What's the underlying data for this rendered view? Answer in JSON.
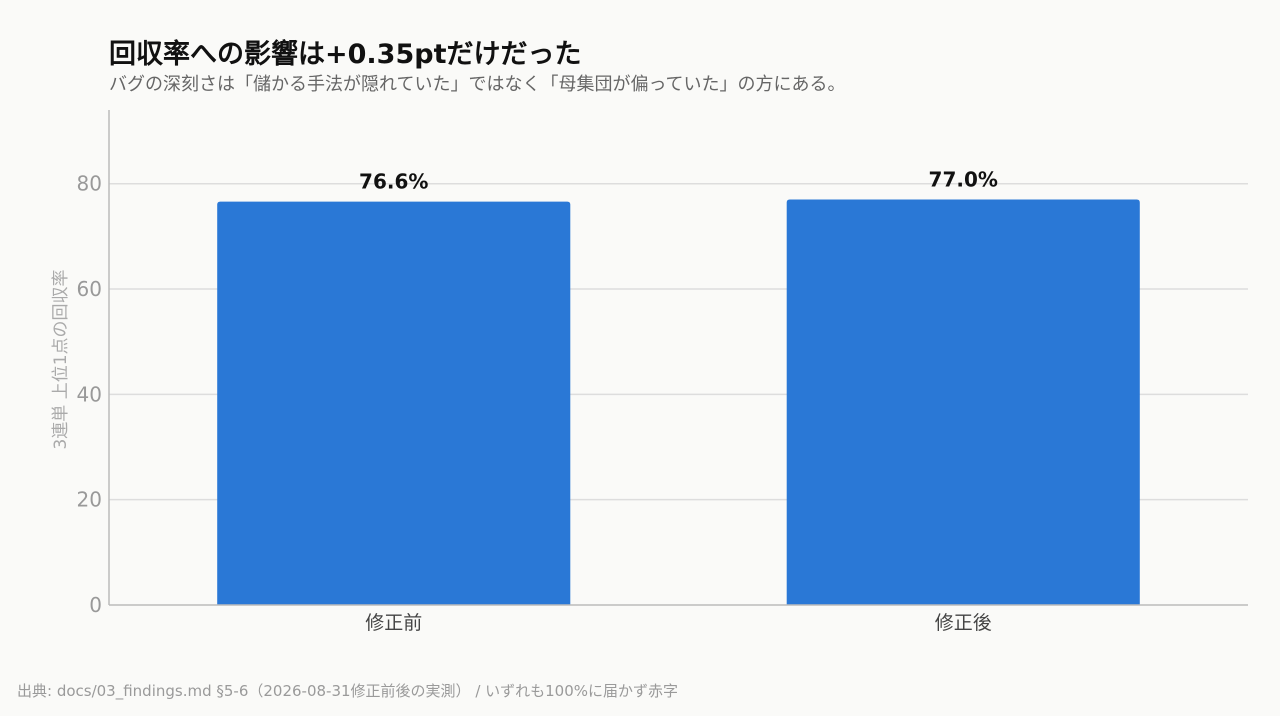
{
  "chart_data": {
    "type": "bar",
    "title": "回収率への影響は+0.35ptだけだった",
    "subtitle": "バグの深刻さは「儲かる手法が隠れていた」ではなく「母集団が偏っていた」の方にある。",
    "ylabel": "3連単 上位1点の回収率",
    "xlabel": "",
    "categories": [
      "修正前",
      "修正後"
    ],
    "values": [
      76.6,
      77.0
    ],
    "value_labels": [
      "76.6%",
      "77.0%"
    ],
    "yticks": [
      0,
      20,
      40,
      60,
      80
    ],
    "ylim": [
      0,
      94
    ],
    "grid": true,
    "bar_color": "#2a78d6",
    "grid_color": "#dddddd",
    "axis_color": "#bbbbbb"
  },
  "source": "出典: docs/03_findings.md §5-6（2026-08-31修正前後の実測） / いずれも100%に届かず赤字"
}
